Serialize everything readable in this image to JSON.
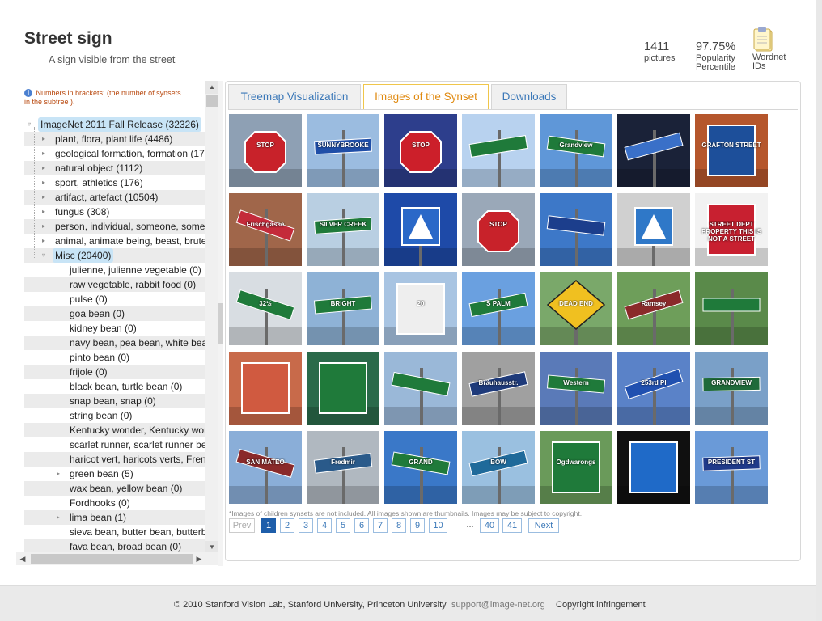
{
  "page": {
    "title": "Street sign",
    "subtitle": "A sign visible from the street"
  },
  "stats": {
    "pictures_value": "1411",
    "pictures_label": "pictures",
    "popularity_value": "97.75%",
    "popularity_label_1": "Popularity",
    "popularity_label_2": "Percentile",
    "wordnet_label_1": "Wordnet",
    "wordnet_label_2": "IDs"
  },
  "tree": {
    "note": "Numbers in brackets: (the number of synsets in the subtree ).",
    "items": [
      {
        "label": "ImageNet 2011 Fall Release (32326)",
        "level": 0
      },
      {
        "label": "plant, flora, plant life (4486)",
        "level": 1
      },
      {
        "label": "geological formation, formation (175)",
        "level": 1
      },
      {
        "label": "natural object (1112)",
        "level": 1
      },
      {
        "label": "sport, athletics (176)",
        "level": 1
      },
      {
        "label": "artifact, artefact (10504)",
        "level": 1
      },
      {
        "label": "fungus (308)",
        "level": 1
      },
      {
        "label": "person, individual, someone, somebody, mortal, soul",
        "level": 1
      },
      {
        "label": "animal, animate being, beast, brute, creature, fauna",
        "level": 1
      },
      {
        "label": "Misc (20400)",
        "level": 1
      },
      {
        "label": "julienne, julienne vegetable (0)",
        "level": 2
      },
      {
        "label": "raw vegetable, rabbit food (0)",
        "level": 2
      },
      {
        "label": "pulse (0)",
        "level": 2
      },
      {
        "label": "goa bean (0)",
        "level": 2
      },
      {
        "label": "kidney bean (0)",
        "level": 2
      },
      {
        "label": "navy bean, pea bean, white bean (0)",
        "level": 2
      },
      {
        "label": "pinto bean (0)",
        "level": 2
      },
      {
        "label": "frijole (0)",
        "level": 2
      },
      {
        "label": "black bean, turtle bean (0)",
        "level": 2
      },
      {
        "label": "snap bean, snap (0)",
        "level": 2
      },
      {
        "label": "string bean (0)",
        "level": 2
      },
      {
        "label": "Kentucky wonder, Kentucky wonder bean (0)",
        "level": 2
      },
      {
        "label": "scarlet runner, scarlet runner bean (0)",
        "level": 2
      },
      {
        "label": "haricot vert, haricots verts, French bean (0)",
        "level": 2
      },
      {
        "label": "green bean (5)",
        "level": 2
      },
      {
        "label": "wax bean, yellow bean (0)",
        "level": 2
      },
      {
        "label": "Fordhooks (0)",
        "level": 2
      },
      {
        "label": "lima bean (1)",
        "level": 2
      },
      {
        "label": "sieva bean, butter bean, butterbean, civet bean (0)",
        "level": 2
      },
      {
        "label": "fava bean, broad bean (0)",
        "level": 2
      }
    ]
  },
  "tabs": {
    "treemap": "Treemap Visualization",
    "images": "Images of the Synset",
    "downloads": "Downloads"
  },
  "images": {
    "note": "*Images of children synsets are not included. All images shown are thumbnails. Images may be subject to copyright.",
    "thumbnails": [
      {
        "sign": "STOP",
        "sky": "#8ea0b4",
        "sign_color": "#c8222a",
        "shape": "octagon"
      },
      {
        "sign": "SUNNYBROOKE",
        "sky": "#9bbce0",
        "sign_color": "#1f4ea8",
        "shape": "street"
      },
      {
        "sign": "STOP",
        "sky": "#2d3e8c",
        "sign_color": "#cc1f2a",
        "shape": "octagon"
      },
      {
        "sign": "",
        "sky": "#b8d2ef",
        "sign_color": "#1f7a3a",
        "shape": "street"
      },
      {
        "sign": "Grandview",
        "sky": "#5f97d8",
        "sign_color": "#1f7a3a",
        "shape": "street"
      },
      {
        "sign": "",
        "sky": "#1a2238",
        "sign_color": "#3a70c8",
        "shape": "street"
      },
      {
        "sign": "GRAFTON STREET",
        "sky": "#b5562c",
        "sign_color": "#1d4f9a",
        "shape": "plaque"
      },
      {
        "sign": "Frischgasse",
        "sky": "#a0664a",
        "sign_color": "#c42a3a",
        "shape": "street"
      },
      {
        "sign": "SILVER CREEK",
        "sky": "#b9cfe2",
        "sign_color": "#1f7a3a",
        "shape": "street"
      },
      {
        "sign": "",
        "sky": "#1e4aa8",
        "sign_color": "#2a68c8",
        "shape": "square"
      },
      {
        "sign": "STOP",
        "sky": "#9aa8b8",
        "sign_color": "#c8222a",
        "shape": "octagon"
      },
      {
        "sign": "",
        "sky": "#3d78c8",
        "sign_color": "#1c3e8c",
        "shape": "street"
      },
      {
        "sign": "",
        "sky": "#d0d0d0",
        "sign_color": "#2f78c8",
        "shape": "square"
      },
      {
        "sign": "STREET DEPT PROPERTY THIS IS NOT A STREET",
        "sky": "#f2f2f2",
        "sign_color": "#c82030",
        "shape": "plaque"
      },
      {
        "sign": "32½",
        "sky": "#d8dde2",
        "sign_color": "#1f7a3a",
        "shape": "street"
      },
      {
        "sign": "BRIGHT",
        "sky": "#8eb2d6",
        "sign_color": "#1f7a3a",
        "shape": "street"
      },
      {
        "sign": "20",
        "sky": "#a8c4e2",
        "sign_color": "#eeeeee",
        "shape": "plaque"
      },
      {
        "sign": "S PALM",
        "sky": "#6aa0e0",
        "sign_color": "#1f7a3a",
        "shape": "street"
      },
      {
        "sign": "DEAD END",
        "sky": "#7aa86a",
        "sign_color": "#f0c020",
        "shape": "diamond"
      },
      {
        "sign": "Ramsey",
        "sky": "#6e9e5a",
        "sign_color": "#8a2a2a",
        "shape": "street"
      },
      {
        "sign": "",
        "sky": "#5a8a4a",
        "sign_color": "#1f7a3a",
        "shape": "street"
      },
      {
        "sign": "",
        "sky": "#c86a4a",
        "sign_color": "#d05a40",
        "shape": "plaque"
      },
      {
        "sign": "",
        "sky": "#2a6a4a",
        "sign_color": "#1f7a3a",
        "shape": "plaque"
      },
      {
        "sign": "",
        "sky": "#9ab8d8",
        "sign_color": "#1f7a3a",
        "shape": "street"
      },
      {
        "sign": "Bräuhausstr.",
        "sky": "#a0a0a0",
        "sign_color": "#1e3a7a",
        "shape": "street"
      },
      {
        "sign": "Western",
        "sky": "#5a7ab8",
        "sign_color": "#1f7a3a",
        "shape": "street"
      },
      {
        "sign": "253rd Pl",
        "sky": "#5a82c8",
        "sign_color": "#2050b0",
        "shape": "street"
      },
      {
        "sign": "GRANDVIEW",
        "sky": "#7aa0c8",
        "sign_color": "#1f6a3a",
        "shape": "street"
      },
      {
        "sign": "SAN MATEO",
        "sky": "#8aaed8",
        "sign_color": "#8a2a2a",
        "shape": "street"
      },
      {
        "sign": "Fredmir",
        "sky": "#b0b8c0",
        "sign_color": "#2a5a8a",
        "shape": "street"
      },
      {
        "sign": "GRAND",
        "sky": "#3a78c8",
        "sign_color": "#1f7a3a",
        "shape": "street"
      },
      {
        "sign": "BOW",
        "sky": "#9ac0e0",
        "sign_color": "#1f6a9a",
        "shape": "street"
      },
      {
        "sign": "Ogdwarongs",
        "sky": "#6a9a5a",
        "sign_color": "#1f7a3a",
        "shape": "plaque"
      },
      {
        "sign": "",
        "sky": "#101010",
        "sign_color": "#1f6ac8",
        "shape": "plaque"
      },
      {
        "sign": "PRESIDENT ST",
        "sky": "#6a9ad8",
        "sign_color": "#1f3a8a",
        "shape": "street"
      }
    ]
  },
  "pagination": {
    "prev": "Prev",
    "pages": [
      "1",
      "2",
      "3",
      "4",
      "5",
      "6",
      "7",
      "8",
      "9",
      "10"
    ],
    "ellipsis": "...",
    "last_pages": [
      "40",
      "41"
    ],
    "next": "Next",
    "current": "1"
  },
  "footer": {
    "copyright": "© 2010 Stanford Vision Lab, Stanford University, Princeton University",
    "email": "support@image-net.org",
    "copyright_link": "Copyright infringement"
  },
  "colors": {
    "tab_active": "#e08a10",
    "link": "#3b78b8",
    "page_current": "#1e5eaa",
    "tree_highlight": "#c8e4f6"
  }
}
